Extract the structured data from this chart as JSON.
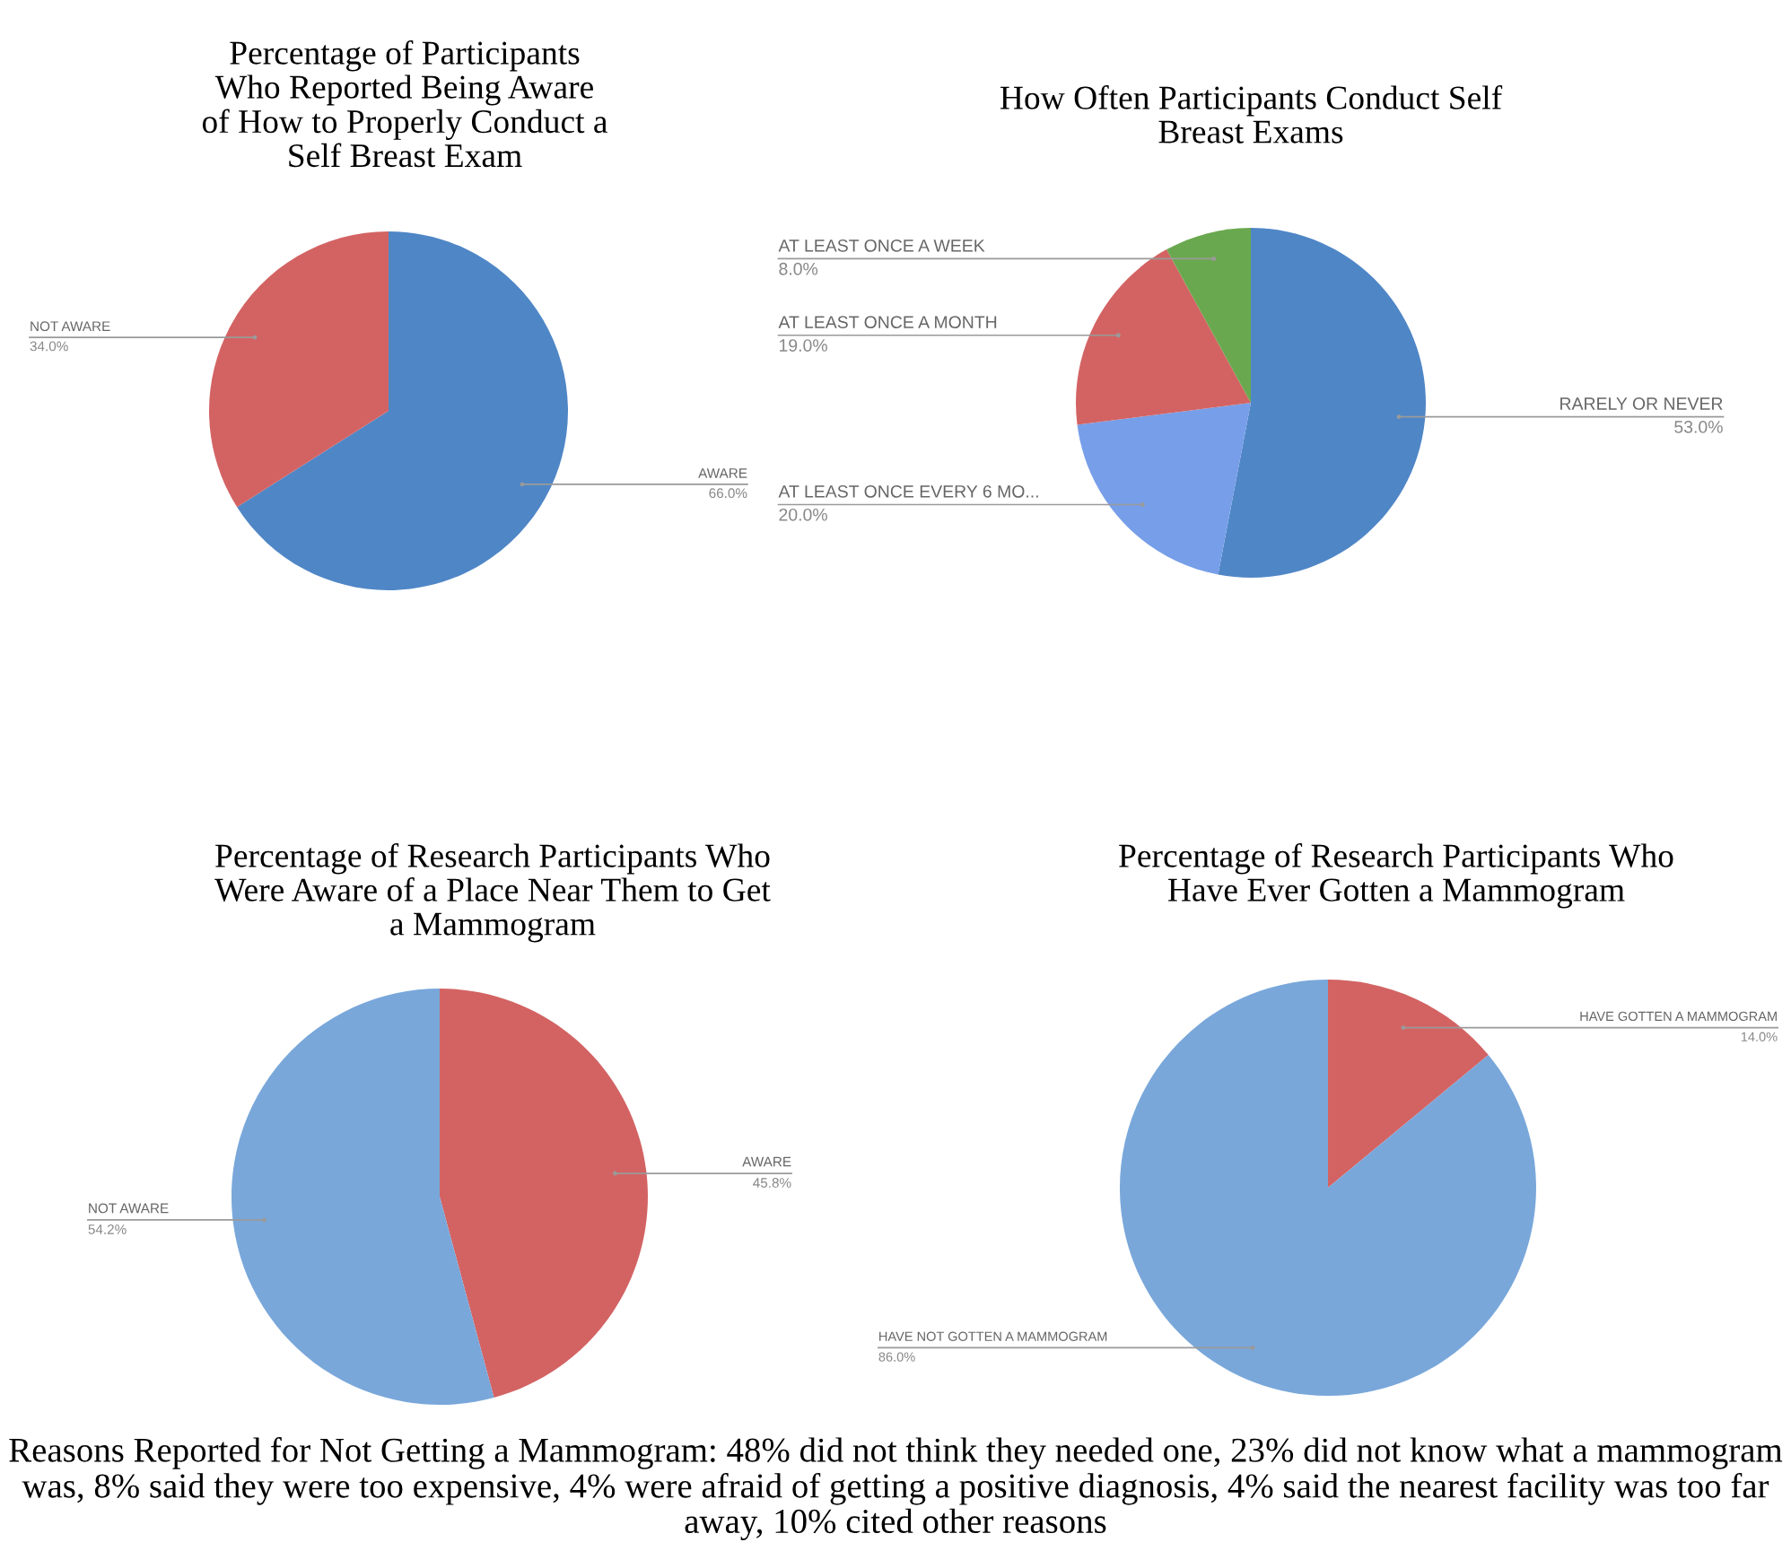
{
  "chart_data": [
    {
      "type": "pie",
      "title": "Percentage of Participants\nWho Reported Being Aware\nof How to Properly Conduct a\nSelf Breast Exam",
      "categories": [
        "AWARE",
        "NOT AWARE"
      ],
      "values": [
        66,
        34
      ],
      "colors": [
        "#4f86c6",
        "#d36363"
      ],
      "value_labels": [
        "66.0%",
        "34.0%"
      ]
    },
    {
      "type": "pie",
      "title": "How Often Participants Conduct Self\nBreast Exams",
      "categories": [
        "RARELY OR NEVER",
        "AT LEAST ONCE EVERY 6 MO...",
        "AT LEAST ONCE A MONTH",
        "AT LEAST ONCE A WEEK"
      ],
      "values": [
        53,
        20,
        19,
        8
      ],
      "colors": [
        "#4f86c6",
        "#779ee8",
        "#d36363",
        "#6aa84f"
      ],
      "value_labels": [
        "53.0%",
        "20.0%",
        "19.0%",
        "8.0%"
      ]
    },
    {
      "type": "pie",
      "title": "Percentage of Research Participants Who\nWere Aware of a Place Near Them to Get\na Mammogram",
      "categories": [
        "AWARE",
        "NOT AWARE"
      ],
      "values": [
        45.8,
        54.2
      ],
      "colors": [
        "#d36363",
        "#79a7da"
      ],
      "value_labels": [
        "45.8%",
        "54.2%"
      ]
    },
    {
      "type": "pie",
      "title": "Percentage of Research Participants Who\nHave Ever Gotten a Mammogram",
      "categories": [
        "HAVE GOTTEN A MAMMOGRAM",
        "HAVE NOT GOTTEN A MAMMOGRAM"
      ],
      "values": [
        14,
        86
      ],
      "colors": [
        "#d36363",
        "#79a7da"
      ],
      "value_labels": [
        "14.0%",
        "86.0%"
      ],
      "annotations": [
        "Reasons Reported for Not Getting a Mammogram: 48% did not think they needed one, 23% did not know what a mammogram was, 8% said they were too expensive, 4% were afraid of getting a positive diagnosis, 4% said the nearest facility was too far away, 10% cited other reasons"
      ]
    }
  ]
}
